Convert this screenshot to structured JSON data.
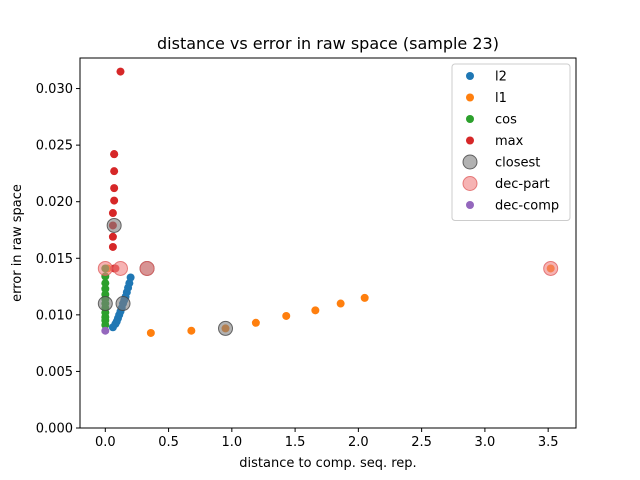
{
  "chart_data": {
    "type": "scatter",
    "title": "distance vs error in raw space (sample 23)",
    "xlabel": "distance to comp. seq. rep.",
    "ylabel": "error in raw space",
    "xlim": [
      -0.2,
      3.72
    ],
    "ylim": [
      0.0,
      0.0327
    ],
    "xticks": [
      "0.0",
      "0.5",
      "1.0",
      "1.5",
      "2.0",
      "2.5",
      "3.0",
      "3.5"
    ],
    "xtick_values": [
      0.0,
      0.5,
      1.0,
      1.5,
      2.0,
      2.5,
      3.0,
      3.5
    ],
    "yticks": [
      "0.000",
      "0.005",
      "0.010",
      "0.015",
      "0.020",
      "0.025",
      "0.030"
    ],
    "ytick_values": [
      0.0,
      0.005,
      0.01,
      0.015,
      0.02,
      0.025,
      0.03
    ],
    "grid": false,
    "legend_position": "top-right",
    "series": [
      {
        "name": "l2",
        "color": "#1f77b4",
        "x": [
          0.06,
          0.08,
          0.09,
          0.1,
          0.11,
          0.12,
          0.13,
          0.14,
          0.15,
          0.16,
          0.17,
          0.18,
          0.19,
          0.2
        ],
        "y": [
          0.0089,
          0.0092,
          0.0094,
          0.0097,
          0.01,
          0.0103,
          0.0106,
          0.011,
          0.0113,
          0.0116,
          0.012,
          0.0124,
          0.0128,
          0.0133
        ]
      },
      {
        "name": "l1",
        "color": "#ff7f0e",
        "x": [
          0.02,
          0.36,
          0.68,
          0.95,
          1.19,
          1.43,
          1.66,
          1.86,
          2.05,
          3.52
        ],
        "y": [
          0.0141,
          0.0084,
          0.0086,
          0.0088,
          0.0093,
          0.0099,
          0.0104,
          0.011,
          0.0115,
          0.0141
        ]
      },
      {
        "name": "cos",
        "color": "#2ca02c",
        "x": [
          0.0,
          0.0,
          0.0,
          0.0,
          0.0,
          0.0,
          0.0,
          0.0,
          0.0,
          0.0,
          0.0,
          0.0
        ],
        "y": [
          0.0091,
          0.0095,
          0.0098,
          0.0102,
          0.0106,
          0.011,
          0.0114,
          0.0118,
          0.0123,
          0.0128,
          0.0134,
          0.0141
        ]
      },
      {
        "name": "max",
        "color": "#d62728",
        "x": [
          0.06,
          0.06,
          0.06,
          0.06,
          0.07,
          0.07,
          0.07,
          0.07,
          0.07,
          0.07,
          0.08,
          0.12
        ],
        "y": [
          0.016,
          0.0169,
          0.0179,
          0.019,
          0.0201,
          0.0212,
          0.0227,
          0.0242,
          0.0242,
          0.0141,
          0.0141,
          0.0315
        ]
      },
      {
        "name": "closest",
        "color": "#7f7f7f",
        "x": [
          0.0,
          0.07,
          0.14,
          0.33,
          0.95
        ],
        "y": [
          0.011,
          0.0179,
          0.011,
          0.0141,
          0.0088
        ]
      },
      {
        "name": "dec-part",
        "color": "#f08080",
        "x": [
          0.0,
          0.12,
          0.33,
          3.52
        ],
        "y": [
          0.0141,
          0.0141,
          0.0141,
          0.0141
        ]
      },
      {
        "name": "dec-comp",
        "color": "#9467bd",
        "x": [
          0.0
        ],
        "y": [
          0.0086
        ]
      }
    ]
  }
}
